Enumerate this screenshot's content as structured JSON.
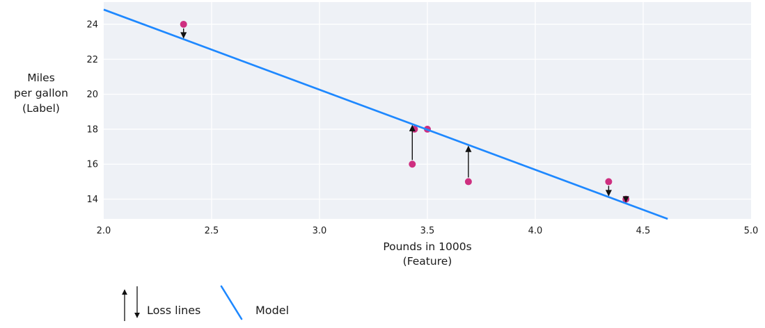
{
  "chart_data": {
    "type": "scatter",
    "title": "",
    "xlabel_lines": [
      "Pounds in 1000s",
      "(Feature)"
    ],
    "ylabel_lines": [
      "Miles",
      "per gallon",
      "(Label)"
    ],
    "xlim": [
      2.0,
      5.0
    ],
    "ylim": [
      12.87,
      25.27
    ],
    "grid": true,
    "xticks": [
      {
        "value": 2.0,
        "label": "2.0"
      },
      {
        "value": 2.5,
        "label": "2.5"
      },
      {
        "value": 3.0,
        "label": "3.0"
      },
      {
        "value": 3.5,
        "label": "3.5"
      },
      {
        "value": 4.0,
        "label": "4.0"
      },
      {
        "value": 4.5,
        "label": "4.5"
      },
      {
        "value": 5.0,
        "label": "5.0"
      }
    ],
    "yticks": [
      {
        "value": 14,
        "label": "14"
      },
      {
        "value": 16,
        "label": "16"
      },
      {
        "value": 18,
        "label": "18"
      },
      {
        "value": 20,
        "label": "20"
      },
      {
        "value": 22,
        "label": "22"
      },
      {
        "value": 24,
        "label": "24"
      }
    ],
    "points": [
      {
        "x": 2.37,
        "y": 24
      },
      {
        "x": 3.44,
        "y": 18
      },
      {
        "x": 3.5,
        "y": 18
      },
      {
        "x": 3.43,
        "y": 16
      },
      {
        "x": 3.69,
        "y": 15
      },
      {
        "x": 4.34,
        "y": 15
      },
      {
        "x": 4.42,
        "y": 14
      }
    ],
    "model": {
      "slope": -4.58,
      "intercept": 34.0
    },
    "loss_lines": [
      {
        "x": 2.37,
        "point_y": 24,
        "line_y": 23.14,
        "direction": "down"
      },
      {
        "x": 3.43,
        "point_y": 16,
        "line_y": 18.29,
        "direction": "up"
      },
      {
        "x": 3.69,
        "point_y": 15,
        "line_y": 17.1,
        "direction": "up"
      },
      {
        "x": 4.34,
        "point_y": 15,
        "line_y": 14.12,
        "direction": "down"
      },
      {
        "x": 4.42,
        "point_y": 14,
        "line_y": 13.76,
        "direction": "down"
      }
    ],
    "legend": {
      "position": "bottom-left",
      "items": [
        {
          "symbol": "up-down-arrows",
          "label": "Loss lines"
        },
        {
          "symbol": "line",
          "label": "Model"
        }
      ]
    },
    "colors": {
      "point": "#ce2f80",
      "model_line": "#1e88ff",
      "arrow": "#111111",
      "plot_background": "#eef1f6",
      "gridline": "#ffffff",
      "text": "#1a1a1a"
    }
  }
}
